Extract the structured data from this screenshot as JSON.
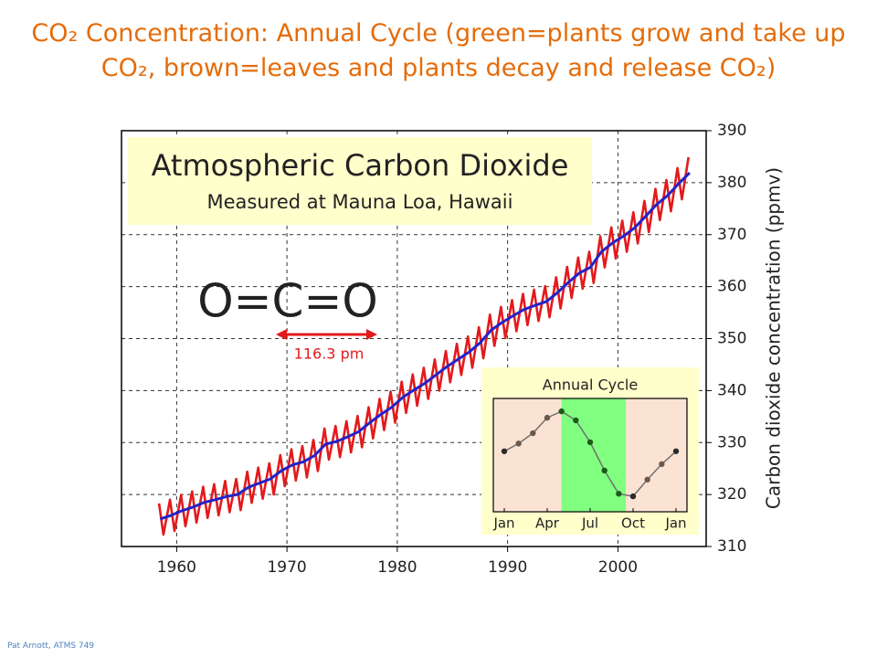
{
  "chart_data": [
    {
      "type": "line",
      "title": "CO₂ Concentration:  Annual Cycle (green=plants grow and take up CO₂, brown=leaves and plants decay and release CO₂)",
      "plot_title": "Atmospheric Carbon Dioxide",
      "plot_subtitle": "Measured at Mauna Loa, Hawaii",
      "y_label": "Carbon dioxide concentration (ppmv)",
      "annotations": [
        "O=C=O",
        "116.3 pm"
      ],
      "footer": "Pat Arnott, ATMS 749",
      "xlim": [
        1955,
        2008
      ],
      "xticks": [
        1960,
        1970,
        1980,
        1990,
        2000
      ],
      "ylim": [
        310,
        390
      ],
      "yticks": [
        310,
        320,
        330,
        340,
        350,
        360,
        370,
        380,
        390
      ],
      "grid": true,
      "series": [
        {
          "color": "#e31a1c",
          "x": [
            1958.4,
            1958.8,
            1959.4,
            1959.8,
            1960.4,
            1960.8,
            1961.4,
            1961.8,
            1962.4,
            1962.8,
            1963.4,
            1963.8,
            1964.4,
            1964.8,
            1965.4,
            1965.8,
            1966.4,
            1966.8,
            1967.4,
            1967.8,
            1968.4,
            1968.8,
            1969.4,
            1969.8,
            1970.4,
            1970.8,
            1971.4,
            1971.8,
            1972.4,
            1972.8,
            1973.4,
            1973.8,
            1974.4,
            1974.8,
            1975.4,
            1975.8,
            1976.4,
            1976.8,
            1977.4,
            1977.8,
            1978.4,
            1978.8,
            1979.4,
            1979.8,
            1980.4,
            1980.8,
            1981.4,
            1981.8,
            1982.4,
            1982.8,
            1983.4,
            1983.8,
            1984.4,
            1984.8,
            1985.4,
            1985.8,
            1986.4,
            1986.8,
            1987.4,
            1987.8,
            1988.4,
            1988.8,
            1989.4,
            1989.8,
            1990.4,
            1990.8,
            1991.4,
            1991.8,
            1992.4,
            1992.8,
            1993.4,
            1993.8,
            1994.4,
            1994.8,
            1995.4,
            1995.8,
            1996.4,
            1996.8,
            1997.4,
            1997.8,
            1998.4,
            1998.8,
            1999.4,
            1999.8,
            2000.4,
            2000.8,
            2001.4,
            2001.8,
            2002.4,
            2002.8,
            2003.4,
            2003.8,
            2004.4,
            2004.8,
            2005.4,
            2005.8,
            2006.4
          ],
          "values": [
            318.3,
            312.3,
            319.0,
            313.0,
            319.9,
            313.9,
            320.6,
            314.6,
            321.5,
            315.5,
            322.0,
            316.0,
            322.6,
            316.6,
            323.0,
            317.0,
            324.4,
            318.4,
            325.2,
            319.2,
            326.0,
            320.0,
            327.6,
            321.6,
            328.7,
            322.7,
            329.3,
            323.3,
            330.5,
            324.5,
            332.7,
            326.7,
            333.2,
            327.2,
            334.1,
            328.1,
            335.1,
            329.1,
            336.8,
            330.8,
            338.4,
            332.4,
            339.8,
            333.8,
            341.7,
            335.7,
            343.1,
            337.1,
            344.4,
            338.4,
            346.0,
            340.0,
            347.6,
            341.6,
            349.0,
            343.0,
            350.4,
            344.4,
            352.2,
            346.2,
            354.6,
            348.6,
            356.1,
            350.1,
            357.4,
            351.4,
            358.6,
            352.6,
            359.4,
            353.4,
            360.1,
            354.1,
            361.8,
            355.8,
            363.8,
            357.8,
            365.6,
            359.6,
            366.7,
            360.7,
            369.7,
            363.7,
            371.4,
            365.4,
            372.7,
            366.7,
            374.3,
            368.3,
            376.5,
            370.5,
            378.8,
            372.8,
            380.5,
            374.5,
            382.8,
            376.8,
            384.9
          ]
        },
        {
          "color": "#2323c8",
          "x": [
            1958.5,
            1959.5,
            1960.5,
            1961.5,
            1962.5,
            1963.5,
            1964.5,
            1965.5,
            1966.5,
            1967.5,
            1968.5,
            1969.5,
            1970.5,
            1971.5,
            1972.5,
            1973.5,
            1974.5,
            1975.5,
            1976.5,
            1977.5,
            1978.5,
            1979.5,
            1980.5,
            1981.5,
            1982.5,
            1983.5,
            1984.5,
            1985.5,
            1986.5,
            1987.5,
            1988.5,
            1989.5,
            1990.5,
            1991.5,
            1992.5,
            1993.5,
            1994.5,
            1995.5,
            1996.5,
            1997.5,
            1998.5,
            1999.5,
            2000.5,
            2001.5,
            2002.5,
            2003.5,
            2004.5,
            2005.5,
            2006.5
          ],
          "values": [
            315.3,
            316.0,
            316.9,
            317.6,
            318.5,
            319.0,
            319.6,
            320.0,
            321.4,
            322.2,
            323.0,
            324.6,
            325.7,
            326.3,
            327.5,
            329.7,
            330.2,
            331.1,
            332.1,
            333.8,
            335.4,
            336.8,
            338.7,
            340.1,
            341.4,
            343.0,
            344.6,
            346.0,
            347.4,
            349.2,
            351.6,
            353.1,
            354.4,
            355.6,
            356.4,
            357.1,
            358.8,
            360.8,
            362.6,
            363.7,
            366.7,
            368.4,
            369.7,
            371.3,
            373.5,
            375.8,
            377.5,
            379.8,
            381.9
          ]
        }
      ]
    },
    {
      "type": "line",
      "title": "Annual Cycle",
      "categories": [
        "Jan",
        null,
        null,
        "Apr",
        null,
        null,
        "Jul",
        null,
        null,
        "Oct",
        null,
        null,
        "Jan"
      ],
      "values": [
        0,
        0.6,
        1.4,
        2.6,
        3.1,
        2.4,
        0.7,
        -1.5,
        -3.3,
        -3.5,
        -2.2,
        -1.0,
        0
      ],
      "point_colors": [
        "#2a2a2a",
        "#6b5a4a",
        "#6b5a4a",
        "#6b5a4a",
        "#1a5a1a",
        "#1a5a1a",
        "#1a5a1a",
        "#1a5a1a",
        "#1a5a1a",
        "#2a2a2a",
        "#6b5a4a",
        "#6b5a4a",
        "#2a2a2a"
      ],
      "line_color": "#707070",
      "ylim": [
        -4.7,
        4.1
      ],
      "bands": [
        {
          "from": 0,
          "to": 4,
          "color": "#fbe3d3"
        },
        {
          "from": 4,
          "to": 8.5,
          "color": "#80ff80"
        },
        {
          "from": 8.5,
          "to": 12,
          "color": "#fbe3d3"
        }
      ]
    }
  ]
}
